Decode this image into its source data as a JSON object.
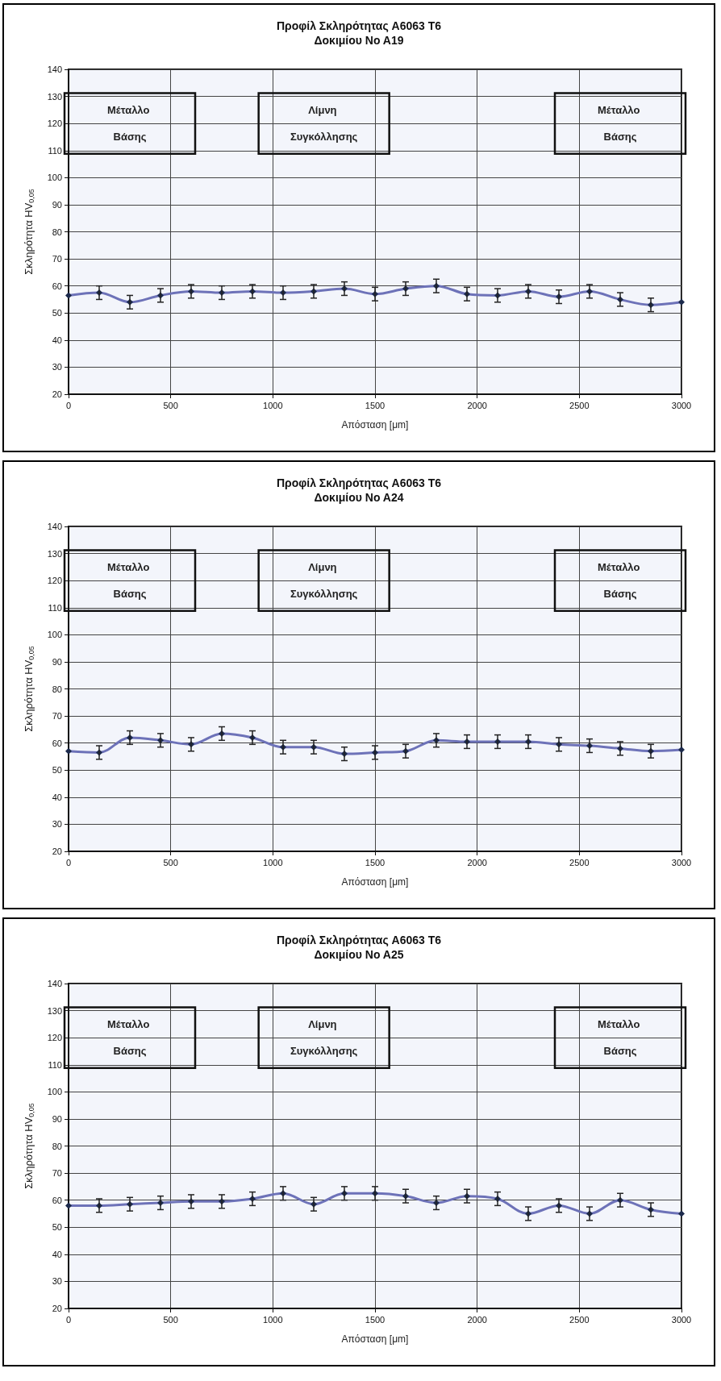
{
  "chart_data": [
    {
      "type": "line",
      "title": "Προφίλ Σκληρότητας A6063 T6",
      "subtitle": "Δοκιμίου No A19",
      "xlabel": "Απόσταση [μm]",
      "ylabel": "Σκληρότητα HV$_{0,05}$",
      "x": [
        0,
        150,
        300,
        450,
        600,
        750,
        900,
        1050,
        1200,
        1350,
        1500,
        1650,
        1800,
        1950,
        2100,
        2250,
        2400,
        2550,
        2700,
        2850,
        3000
      ],
      "series": [
        {
          "color": "#6d72b8",
          "values": [
            56.5,
            57.5,
            54,
            56.5,
            58,
            57.5,
            58,
            57.5,
            58,
            59,
            57,
            59,
            60,
            57,
            56.5,
            58,
            56,
            58,
            55,
            53,
            54
          ],
          "errors": [
            null,
            2.5,
            2.5,
            2.5,
            2.5,
            2.5,
            2.5,
            2.5,
            2.5,
            2.5,
            2.5,
            2.5,
            2.5,
            2.5,
            2.5,
            2.5,
            2.5,
            2.5,
            2.5,
            2.5,
            null
          ]
        }
      ],
      "xlim": [
        0,
        3000
      ],
      "xticks": [
        0,
        500,
        1000,
        1500,
        2000,
        2500,
        3000
      ],
      "ylim": [
        20,
        140
      ],
      "yticks": [
        20,
        30,
        40,
        50,
        60,
        70,
        80,
        90,
        100,
        110,
        120,
        130,
        140
      ],
      "grid": true,
      "marker": "diamond",
      "line_style": "solid",
      "annotations": [
        "Μέταλλο Βάσης",
        "Λίμνη Συγκόλλησης",
        "Μέταλλο Βάσης"
      ]
    },
    {
      "type": "line",
      "title": "Προφίλ Σκληρότητας A6063 T6",
      "subtitle": "Δοκιμίου No A24",
      "xlabel": "Απόσταση [μm]",
      "ylabel": "Σκληρότητα HV$_{0,05}$",
      "x": [
        0,
        150,
        300,
        450,
        600,
        750,
        900,
        1050,
        1200,
        1350,
        1500,
        1650,
        1800,
        1950,
        2100,
        2250,
        2400,
        2550,
        2700,
        2850,
        3000
      ],
      "series": [
        {
          "color": "#6d72b8",
          "values": [
            57,
            56.5,
            62,
            61,
            59.5,
            63.5,
            62,
            58.5,
            58.5,
            56,
            56.5,
            57,
            61,
            60.5,
            60.5,
            60.5,
            59.5,
            59,
            58,
            57,
            57.5
          ],
          "errors": [
            null,
            2.5,
            2.5,
            2.5,
            2.5,
            2.5,
            2.5,
            2.5,
            2.5,
            2.5,
            2.5,
            2.5,
            2.5,
            2.5,
            2.5,
            2.5,
            2.5,
            2.5,
            2.5,
            2.5,
            null
          ]
        }
      ],
      "xlim": [
        0,
        3000
      ],
      "xticks": [
        0,
        500,
        1000,
        1500,
        2000,
        2500,
        3000
      ],
      "ylim": [
        20,
        140
      ],
      "yticks": [
        20,
        30,
        40,
        50,
        60,
        70,
        80,
        90,
        100,
        110,
        120,
        130,
        140
      ],
      "grid": true,
      "marker": "diamond",
      "line_style": "solid",
      "annotations": [
        "Μέταλλο Βάσης",
        "Λίμνη Συγκόλλησης",
        "Μέταλλο Βάσης"
      ]
    },
    {
      "type": "line",
      "title": "Προφίλ Σκληρότητας A6063 T6",
      "subtitle": "Δοκιμίου No A25",
      "xlabel": "Απόσταση [μm]",
      "ylabel": "Σκληρότητα HV$_{0,05}$",
      "x": [
        0,
        150,
        300,
        450,
        600,
        750,
        900,
        1050,
        1200,
        1350,
        1500,
        1650,
        1800,
        1950,
        2100,
        2250,
        2400,
        2550,
        2700,
        2850,
        3000
      ],
      "series": [
        {
          "color": "#6d72b8",
          "values": [
            58,
            58,
            58.5,
            59,
            59.5,
            59.5,
            60.5,
            62.5,
            58.5,
            62.5,
            62.5,
            61.5,
            59,
            61.5,
            60.5,
            55,
            58,
            55,
            60,
            56.5,
            55
          ],
          "errors": [
            null,
            2.5,
            2.5,
            2.5,
            2.5,
            2.5,
            2.5,
            2.5,
            2.5,
            2.5,
            2.5,
            2.5,
            2.5,
            2.5,
            2.5,
            2.5,
            2.5,
            2.5,
            2.5,
            2.5,
            null
          ]
        }
      ],
      "xlim": [
        0,
        3000
      ],
      "xticks": [
        0,
        500,
        1000,
        1500,
        2000,
        2500,
        3000
      ],
      "ylim": [
        20,
        140
      ],
      "yticks": [
        20,
        30,
        40,
        50,
        60,
        70,
        80,
        90,
        100,
        110,
        120,
        130,
        140
      ],
      "grid": true,
      "marker": "diamond",
      "line_style": "solid",
      "annotations": [
        "Μέταλλο Βάσης",
        "Λίμνη Συγκόλλησης",
        "Μέταλλο Βάσης"
      ]
    }
  ]
}
